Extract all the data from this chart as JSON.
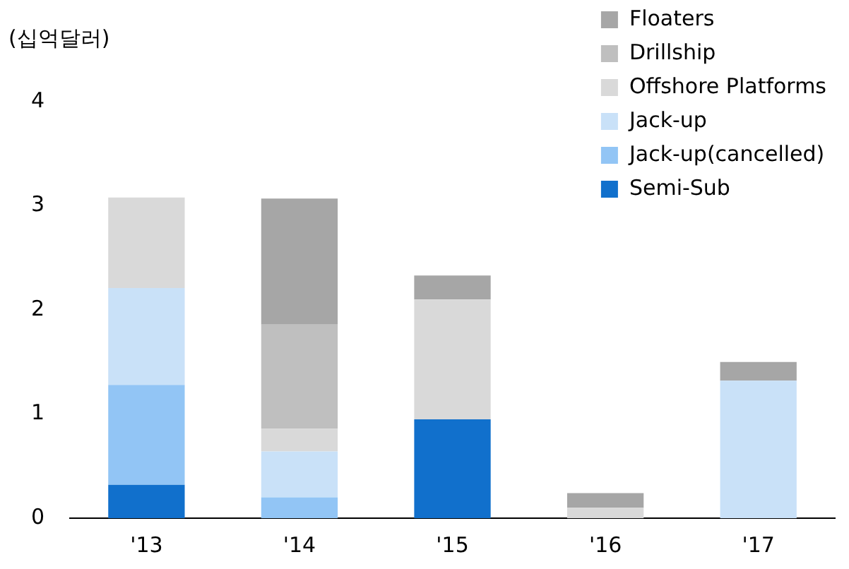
{
  "chart_data": {
    "type": "bar",
    "stacked": true,
    "ylabel": "(십억달러)",
    "categories": [
      "'13",
      "'14",
      "'15",
      "'16",
      "'17"
    ],
    "series": [
      {
        "name": "Semi-Sub",
        "color": "#1170cc",
        "values": [
          0.32,
          null,
          0.95,
          null,
          null
        ]
      },
      {
        "name": "Jack-up(cancelled)",
        "color": "#92c5f5",
        "values": [
          0.96,
          0.2,
          null,
          null,
          null
        ]
      },
      {
        "name": "Jack-up",
        "color": "#c9e1f8",
        "values": [
          0.93,
          0.44,
          null,
          null,
          1.32
        ]
      },
      {
        "name": "Offshore Platforms",
        "color": "#d9d9d9",
        "values": [
          0.87,
          0.22,
          1.15,
          0.1,
          null
        ]
      },
      {
        "name": "Drillship",
        "color": "#bfbfbf",
        "values": [
          null,
          1.0,
          null,
          null,
          null
        ]
      },
      {
        "name": "Floaters",
        "color": "#a6a6a6",
        "values": [
          null,
          1.21,
          0.23,
          0.14,
          0.18
        ]
      }
    ],
    "ylim": [
      0,
      4
    ],
    "yticks": [
      0,
      1,
      2,
      3,
      4
    ],
    "grid": false,
    "legend": "top right"
  }
}
